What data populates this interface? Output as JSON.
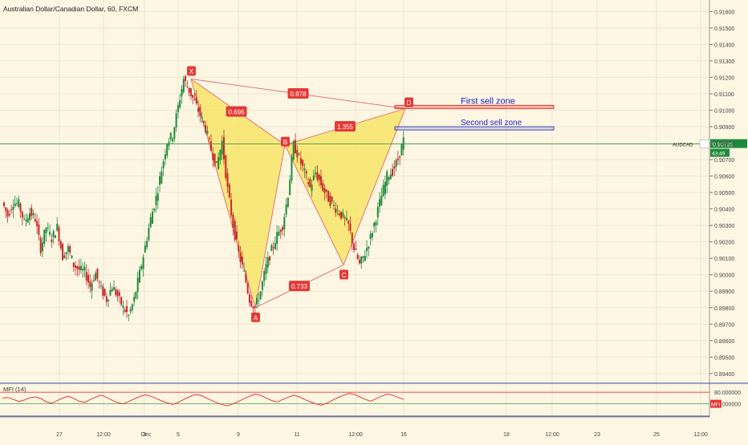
{
  "header": {
    "title": "Australian Dollar/Canadian Dollar, 60, FXCM"
  },
  "colors": {
    "background": "#fdf6e3",
    "grid": "#ede6d2",
    "candle_up": "#1e8a3c",
    "candle_down": "#c62828",
    "pattern_fill": "#f6e35a",
    "pattern_line": "#e57373",
    "label_bg": "#e53935",
    "zone_red": "#e53935",
    "zone_blue": "#3949ab",
    "zone_text": "#1e22c8",
    "price_line": "#43a047",
    "mfi_line": "#e53935",
    "separator": "#3949ab"
  },
  "chart_data": {
    "type": "candlestick",
    "title": "Australian Dollar/Canadian Dollar, 60, FXCM",
    "symbol": "AUDCAD",
    "timeframe": "60",
    "source": "FXCM",
    "y_ticks": [
      "0.91600",
      "0.91500",
      "0.91400",
      "0.91300",
      "0.91200",
      "0.91100",
      "0.91000",
      "0.90900",
      "0.90800",
      "0.90700",
      "0.90600",
      "0.90500",
      "0.90400",
      "0.90300",
      "0.90200",
      "0.90100",
      "0.90000",
      "0.89900",
      "0.89800",
      "0.89700",
      "0.89600",
      "0.89500",
      "0.89400"
    ],
    "ylim": [
      0.8937,
      0.9167
    ],
    "x_ticks": [
      "27",
      "12:00",
      "Dec",
      "3",
      "5",
      "9",
      "11",
      "12:00",
      "16",
      "18",
      "12:00",
      "23",
      "25",
      "12:00"
    ],
    "last_price": "0.90795",
    "countdown": "43:49",
    "harmonic_points": [
      {
        "label": "X",
        "price": 0.9119
      },
      {
        "label": "A",
        "price": 0.898
      },
      {
        "label": "B",
        "price": 0.9079
      },
      {
        "label": "C",
        "price": 0.9006
      },
      {
        "label": "D",
        "price": 0.9101
      }
    ],
    "ratios": [
      "0.696",
      "0.733",
      "1.355",
      "0.878"
    ],
    "zones": [
      {
        "label": "First sell zone",
        "price": 0.9102
      },
      {
        "label": "Second sell zone",
        "price": 0.9089
      }
    ],
    "series": [
      {
        "path": [
          [
            0.9044,
            0.9036,
            0.9044,
            0.9043,
            0.9032,
            0.9038,
            0.9034,
            0.9016,
            0.9029,
            0.9022,
            0.9029,
            0.9011,
            0.9016,
            0.9006,
            0.9003,
            0.9002,
            0.8993,
            0.9001,
            0.8991,
            0.8985,
            0.8993,
            0.8987,
            0.898,
            0.8975,
            0.8985,
            0.9001,
            0.9017,
            0.9034,
            0.9047,
            0.9064,
            0.9081,
            0.9085,
            0.9102,
            0.9119,
            0.9112,
            0.9105,
            0.9097,
            0.9089,
            0.9076,
            0.9066,
            0.9081,
            0.9052,
            0.903,
            0.9013,
            0.9001,
            0.8985,
            0.898,
            0.899,
            0.9005,
            0.9015,
            0.9024,
            0.903,
            0.9049,
            0.9079,
            0.9071,
            0.9062,
            0.9053,
            0.9062,
            0.9055,
            0.9048,
            0.9043,
            0.9039,
            0.9035,
            0.903,
            0.9016,
            0.9006,
            0.9013,
            0.9023,
            0.9035,
            0.9048,
            0.906,
            0.9063,
            0.907,
            0.9082
          ]
        ]
      }
    ],
    "indicator": {
      "name": "MFI (14)",
      "levels": [
        "80.000000",
        "40.000000"
      ],
      "badge": "MFI",
      "values": [
        60,
        62,
        55,
        48,
        53,
        61,
        64,
        58,
        47,
        42,
        51,
        60,
        66,
        58,
        49,
        45,
        55,
        63,
        70,
        62,
        52,
        44,
        40,
        48,
        57,
        65,
        71,
        66,
        58,
        50,
        43,
        38,
        45,
        55,
        64,
        72,
        70,
        61,
        52,
        44,
        37,
        33,
        40,
        49,
        58,
        66,
        74,
        69,
        60,
        51,
        46,
        55,
        63,
        70,
        64,
        55,
        47,
        40,
        35,
        42,
        52,
        61,
        69,
        76,
        73,
        64,
        55,
        49,
        58,
        66,
        74,
        70,
        62,
        55
      ]
    }
  }
}
